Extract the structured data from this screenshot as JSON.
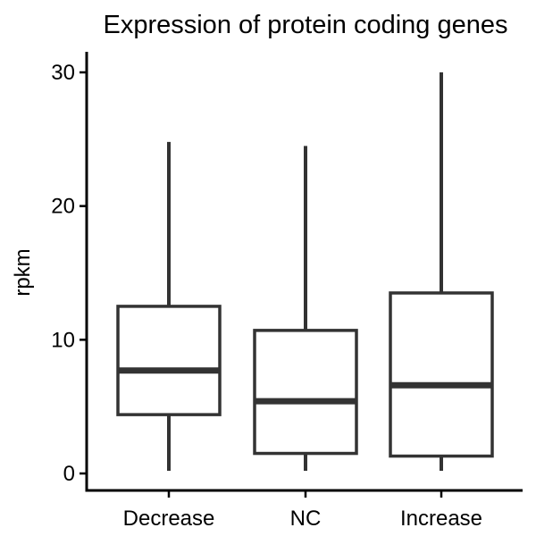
{
  "chart_data": {
    "type": "box",
    "title": "Expression of protein coding genes",
    "xlabel": "",
    "ylabel": "rpkm",
    "ylim": [
      -1,
      31
    ],
    "yticks": [
      0,
      10,
      20,
      30
    ],
    "grid": false,
    "categories": [
      "Decrease",
      "NC",
      "Increase"
    ],
    "boxes": [
      {
        "category": "Decrease",
        "whisker_low": 0.2,
        "q1": 4.4,
        "median": 7.7,
        "q3": 12.5,
        "whisker_high": 24.8
      },
      {
        "category": "NC",
        "whisker_low": 0.2,
        "q1": 1.5,
        "median": 5.4,
        "q3": 10.7,
        "whisker_high": 24.5
      },
      {
        "category": "Increase",
        "whisker_low": 0.2,
        "q1": 1.3,
        "median": 6.6,
        "q3": 13.5,
        "whisker_high": 30.0
      }
    ],
    "colors": {
      "stroke": "#333333",
      "axis": "#000000",
      "fill": "#ffffff"
    }
  }
}
